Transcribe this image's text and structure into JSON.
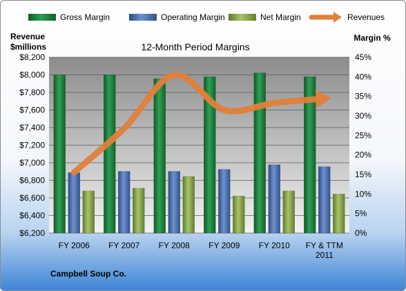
{
  "chart_data": {
    "type": "bar",
    "title": "12-Month Period Margins",
    "ylabel_left": "Revenue\n$millions",
    "ylabel_right": "Margin %",
    "left_axis": {
      "min": 6200,
      "max": 8200,
      "step": 200,
      "format": "$#,###"
    },
    "right_axis": {
      "min": 0,
      "max": 45,
      "step": 5,
      "format": "#%"
    },
    "categories": [
      "FY 2006",
      "FY 2007",
      "FY 2008",
      "FY 2009",
      "FY 2010",
      "FY & TTM\n2011"
    ],
    "series": [
      {
        "name": "Gross Margin",
        "axis": "right",
        "color": "#1f7a3c",
        "values": [
          40.5,
          40.5,
          39.5,
          40.0,
          41.0,
          40.0
        ]
      },
      {
        "name": "Operating Margin",
        "axis": "right",
        "color": "#4a6fb0",
        "values": [
          15.5,
          15.8,
          15.8,
          16.3,
          17.5,
          17.0
        ]
      },
      {
        "name": "Net Margin",
        "axis": "right",
        "color": "#8aa84a",
        "values": [
          10.8,
          11.5,
          14.5,
          9.5,
          10.8,
          10.0
        ]
      },
      {
        "name": "Revenues",
        "axis": "left",
        "type": "line",
        "color": "#e0803a",
        "values": [
          6890,
          7390,
          8000,
          7600,
          7680,
          7730
        ]
      }
    ],
    "grid": true,
    "legend": "top"
  },
  "footer": {
    "company": "Campbell Soup Co."
  }
}
